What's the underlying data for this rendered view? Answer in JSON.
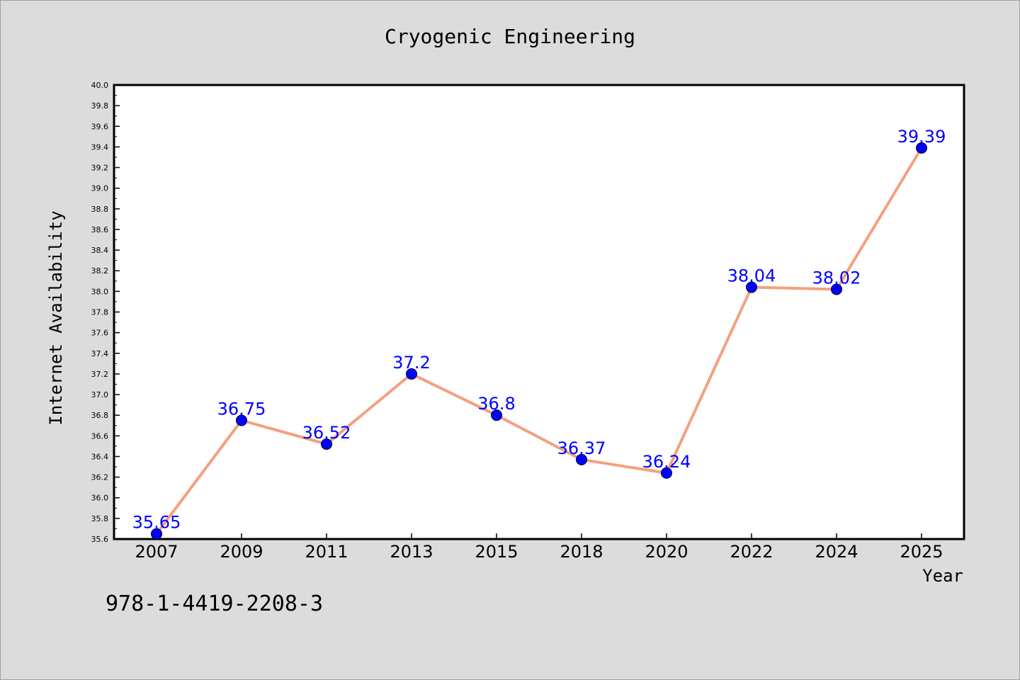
{
  "chart_data": {
    "type": "line",
    "title": "Cryogenic Engineering",
    "xlabel": "Year",
    "ylabel": "Internet Availability",
    "categories": [
      "2007",
      "2009",
      "2011",
      "2013",
      "2015",
      "2018",
      "2020",
      "2022",
      "2024",
      "2025"
    ],
    "series": [
      {
        "values": [
          35.65,
          36.75,
          36.52,
          37.2,
          36.8,
          36.37,
          36.24,
          38.04,
          38.02,
          39.39
        ],
        "data_labels": [
          "35.65",
          "36.75",
          "36.52",
          "37.2",
          "36.8",
          "36.37",
          "36.24",
          "38.04",
          "38.02",
          "39.39"
        ],
        "line_color": "#f4a080",
        "marker_color": "#0000ff",
        "label_color": "#0000ff"
      }
    ],
    "ylim": [
      35.6,
      40.0
    ],
    "yticks": [
      "35.6",
      "35.8",
      "36.0",
      "36.2",
      "36.4",
      "36.6",
      "36.8",
      "37.0",
      "37.2",
      "37.4",
      "37.6",
      "37.8",
      "38.0",
      "38.2",
      "38.4",
      "38.6",
      "38.8",
      "39.0",
      "39.2",
      "39.4",
      "39.6",
      "39.8",
      "40.0"
    ],
    "grid": false,
    "legend": "none"
  },
  "footer": {
    "code": "978-1-4419-2208-3"
  }
}
